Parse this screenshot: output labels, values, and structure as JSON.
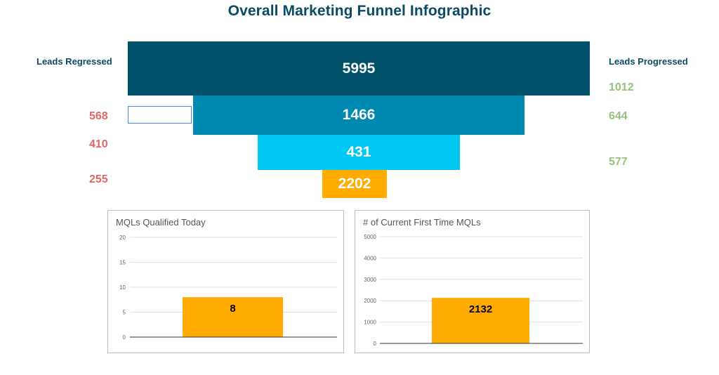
{
  "title": "Overall Marketing Funnel Infographic",
  "left_heading": "Leads Regressed",
  "right_heading": "Leads Progressed",
  "colors": {
    "title": "#0b4a63",
    "regressed": "#e06666",
    "progressed": "#93c47d",
    "stage1": "#00506a",
    "stage2": "#0089b0",
    "stage3": "#00c8f5",
    "stage4": "#ffab00",
    "bar": "#ffab00"
  },
  "chart_data": [
    {
      "type": "funnel",
      "title": "Overall Marketing Funnel Infographic",
      "stages": [
        {
          "value": "5995"
        },
        {
          "value": "1466"
        },
        {
          "value": "431"
        },
        {
          "value": "2202"
        }
      ],
      "regressed": [
        "568",
        "410",
        "255"
      ],
      "progressed": [
        "1012",
        "644",
        "577"
      ]
    },
    {
      "type": "bar",
      "title": "MQLs Qualified Today",
      "categories": [
        ""
      ],
      "values": [
        8
      ],
      "value_label": "8",
      "ylim": [
        0,
        20
      ],
      "yticks": [
        0,
        5,
        10,
        15,
        20
      ],
      "grid": true
    },
    {
      "type": "bar",
      "title": "# of Current First Time MQLs",
      "categories": [
        ""
      ],
      "values": [
        2132
      ],
      "value_label": "2132",
      "ylim": [
        0,
        5000
      ],
      "yticks": [
        0,
        1000,
        2000,
        3000,
        4000,
        5000
      ],
      "grid": true
    }
  ]
}
